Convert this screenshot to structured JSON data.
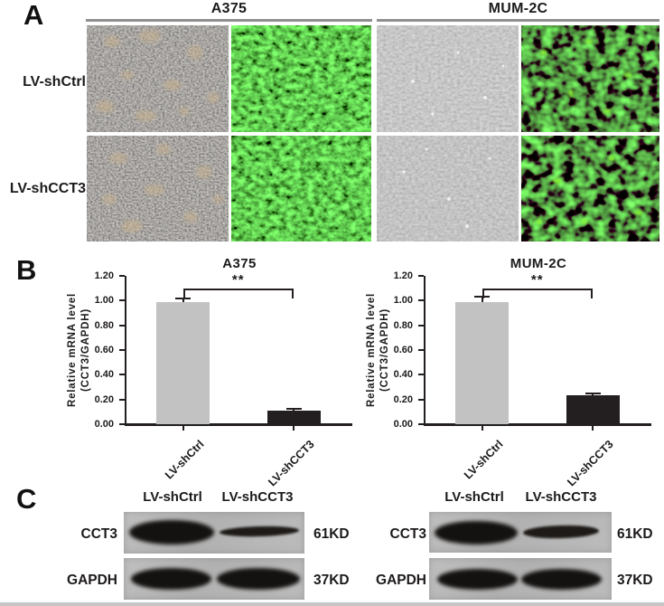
{
  "panels": {
    "a": "A",
    "b": "B",
    "c": "C"
  },
  "panel_a": {
    "cell_lines": [
      "A375",
      "MUM-2C"
    ],
    "row_labels": [
      "LV-shCtrl",
      "LV-shCCT3"
    ],
    "image_types": [
      "phase-contrast",
      "gfp-fluorescence",
      "phase-contrast",
      "gfp-fluorescence"
    ]
  },
  "chart_data": [
    {
      "type": "bar",
      "title": "A375",
      "categories": [
        "LV-shCtrl",
        "LV-shCCT3"
      ],
      "values": [
        0.99,
        0.11
      ],
      "errors": [
        0.03,
        0.015
      ],
      "bar_colors": [
        "#c2c2c2",
        "#231f20"
      ],
      "ylabel": [
        "Relative mRNA level",
        "(CCT3/GAPDH)"
      ],
      "ylim": [
        0,
        1.2
      ],
      "ytick_step": 0.2,
      "ytick_labels": [
        "0.00",
        "0.20",
        "0.40",
        "0.60",
        "0.80",
        "1.00",
        "1.20"
      ],
      "significance": {
        "label": "**",
        "y": 1.1
      },
      "grid": false,
      "legend": "none"
    },
    {
      "type": "bar",
      "title": "MUM-2C",
      "categories": [
        "LV-shCtrl",
        "LV-shCCT3"
      ],
      "values": [
        0.99,
        0.235
      ],
      "errors": [
        0.04,
        0.015
      ],
      "bar_colors": [
        "#c2c2c2",
        "#231f20"
      ],
      "ylabel": [
        "Relative mRNA level",
        "(CCT3/GAPDH)"
      ],
      "ylim": [
        0,
        1.2
      ],
      "ytick_step": 0.2,
      "ytick_labels": [
        "0.00",
        "0.20",
        "0.40",
        "0.60",
        "0.80",
        "1.00",
        "1.20"
      ],
      "significance": {
        "label": "**",
        "y": 1.1
      },
      "grid": false,
      "legend": "none"
    }
  ],
  "panel_c": {
    "groups": [
      {
        "col_headers": [
          "LV-shCtrl",
          "LV-shCCT3"
        ],
        "rows": [
          {
            "protein": "CCT3",
            "weight": "61KD"
          },
          {
            "protein": "GAPDH",
            "weight": "37KD"
          }
        ]
      },
      {
        "col_headers": [
          "LV-shCtrl",
          "LV-shCCT3"
        ],
        "rows": [
          {
            "protein": "CCT3",
            "weight": "61KD"
          },
          {
            "protein": "GAPDH",
            "weight": "37KD"
          }
        ]
      }
    ]
  }
}
